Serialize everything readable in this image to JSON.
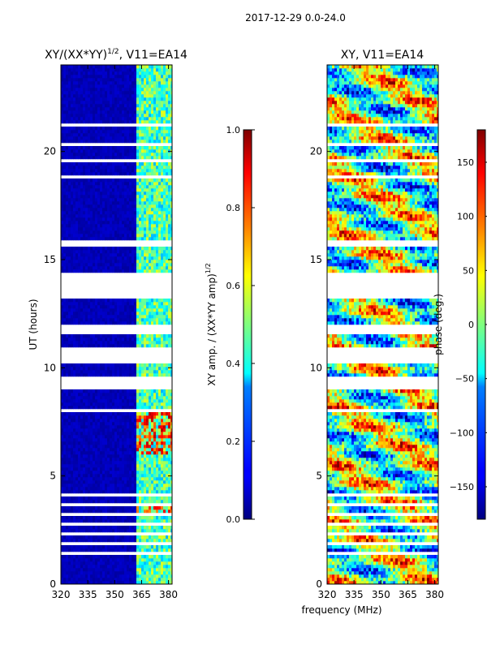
{
  "figure": {
    "suptitle": "2017-12-29 0.0-24.0",
    "shared_xlabel": "frequency (MHz)"
  },
  "chart_data": [
    {
      "type": "heatmap",
      "title_base": "XY/(XX*YY)",
      "title_exp": "1/2",
      "title_suffix": ", V11=EA14",
      "xlabel": "frequency (MHz)",
      "ylabel": "UT (hours)",
      "xlim": [
        320,
        382
      ],
      "ylim": [
        0,
        24
      ],
      "xticks": [
        320,
        335,
        350,
        365,
        380
      ],
      "yticks": [
        0,
        5,
        10,
        15,
        20
      ],
      "colormap": "jet",
      "colorbar": {
        "label_base": "XY amp. / (XX*YY amp)",
        "label_exp": "1/2",
        "range": [
          0.0,
          1.0
        ],
        "ticks": [
          "0.0",
          "0.2",
          "0.4",
          "0.6",
          "0.8",
          "1.0"
        ],
        "tick_values": [
          0.0,
          0.2,
          0.4,
          0.6,
          0.8,
          1.0
        ]
      },
      "description": "Normalized cross-polarization amplitude; near 0 below 362 MHz, 0.3-0.6 in 362-380 MHz band with peaks 0.8-0.9 near 3.5 h and 6-8 h; many time rows flagged (white)"
    },
    {
      "type": "heatmap",
      "title": "XY, V11=EA14",
      "xlabel": "frequency (MHz)",
      "ylabel": "",
      "xlim": [
        320,
        382
      ],
      "ylim": [
        0,
        24
      ],
      "xticks": [
        320,
        335,
        350,
        365,
        380
      ],
      "yticks": [
        0,
        5,
        10,
        15,
        20
      ],
      "colormap": "jet",
      "colorbar": {
        "label": "phase (deg.)",
        "range": [
          -180,
          180
        ],
        "ticks": [
          "150",
          "100",
          "50",
          "0",
          "−50",
          "−100",
          "−150"
        ],
        "tick_values": [
          150,
          100,
          50,
          0,
          -50,
          -100,
          -150
        ]
      },
      "description": "XY phase spanning -180 to 180 deg, noisy with banded structure; same flagged rows as amplitude panel"
    }
  ]
}
